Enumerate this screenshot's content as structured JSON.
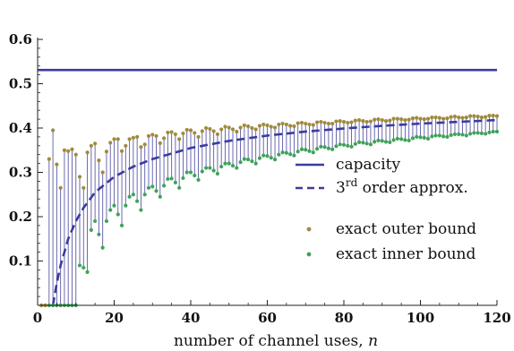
{
  "chart_data": {
    "type": "line",
    "title": "",
    "xlabel": "number of channel uses, ",
    "xlabel_var": "n",
    "ylabel": "",
    "xlim": [
      0,
      120
    ],
    "ylim": [
      0,
      0.6
    ],
    "x_ticks": [
      0,
      20,
      40,
      60,
      80,
      100,
      120
    ],
    "x_tick_labels": [
      "0",
      "20",
      "40",
      "60",
      "80",
      "100",
      "120"
    ],
    "y_ticks": [
      0.1,
      0.2,
      0.3,
      0.4,
      0.5,
      0.6
    ],
    "y_tick_labels": [
      "0.1",
      "0.2",
      "0.3",
      "0.4",
      "0.5",
      "0.6"
    ],
    "grid": false,
    "legend_position": "right",
    "series": [
      {
        "name": "capacity",
        "style": "solid",
        "color": "#3b3b9e",
        "x": [
          0,
          120
        ],
        "y": [
          0.531,
          0.531
        ]
      },
      {
        "name": "3rd order approx.",
        "name_base": "3",
        "name_sup": "rd",
        "name_rest": " order approx.",
        "style": "dashed",
        "color": "#3b3b9e",
        "x": [
          4,
          5,
          6,
          8,
          10,
          12,
          15,
          20,
          25,
          30,
          40,
          50,
          60,
          70,
          80,
          90,
          100,
          110,
          120
        ],
        "y": [
          0.0,
          0.05,
          0.09,
          0.15,
          0.19,
          0.22,
          0.255,
          0.29,
          0.313,
          0.33,
          0.355,
          0.371,
          0.383,
          0.392,
          0.399,
          0.405,
          0.41,
          0.414,
          0.418
        ]
      },
      {
        "name": "exact outer bound",
        "style": "points",
        "color": "#a08a3c",
        "x": [
          1,
          2,
          3,
          4,
          5,
          6,
          7,
          8,
          9,
          10,
          11,
          12,
          13,
          14,
          15,
          16,
          17,
          18,
          19,
          20,
          21,
          22,
          23,
          24,
          25,
          26,
          27,
          28,
          29,
          30,
          31,
          32,
          33,
          34,
          35,
          36,
          37,
          38,
          39,
          40,
          41,
          42,
          43,
          44,
          45,
          46,
          47,
          48,
          49,
          50,
          51,
          52,
          53,
          54,
          55,
          56,
          57,
          58,
          59,
          60,
          61,
          62,
          63,
          64,
          65,
          66,
          67,
          68,
          69,
          70,
          71,
          72,
          73,
          74,
          75,
          76,
          77,
          78,
          79,
          80,
          81,
          82,
          83,
          84,
          85,
          86,
          87,
          88,
          89,
          90,
          91,
          92,
          93,
          94,
          95,
          96,
          97,
          98,
          99,
          100,
          101,
          102,
          103,
          104,
          105,
          106,
          107,
          108,
          109,
          110,
          111,
          112,
          113,
          114,
          115,
          116,
          117,
          118,
          119,
          120
        ],
        "y": [
          0.0,
          0.0,
          0.33,
          0.395,
          0.318,
          0.265,
          0.35,
          0.348,
          0.352,
          0.34,
          0.29,
          0.265,
          0.345,
          0.36,
          0.365,
          0.327,
          0.3,
          0.347,
          0.367,
          0.375,
          0.375,
          0.348,
          0.36,
          0.375,
          0.378,
          0.38,
          0.357,
          0.363,
          0.382,
          0.385,
          0.382,
          0.366,
          0.377,
          0.39,
          0.391,
          0.386,
          0.375,
          0.388,
          0.396,
          0.395,
          0.389,
          0.38,
          0.393,
          0.4,
          0.398,
          0.393,
          0.386,
          0.397,
          0.403,
          0.401,
          0.397,
          0.392,
          0.401,
          0.406,
          0.404,
          0.4,
          0.397,
          0.405,
          0.408,
          0.406,
          0.403,
          0.401,
          0.408,
          0.41,
          0.408,
          0.405,
          0.404,
          0.411,
          0.412,
          0.41,
          0.408,
          0.407,
          0.413,
          0.414,
          0.412,
          0.41,
          0.41,
          0.415,
          0.416,
          0.414,
          0.412,
          0.413,
          0.417,
          0.418,
          0.416,
          0.414,
          0.415,
          0.419,
          0.42,
          0.418,
          0.416,
          0.417,
          0.421,
          0.421,
          0.42,
          0.418,
          0.419,
          0.422,
          0.423,
          0.421,
          0.42,
          0.421,
          0.424,
          0.424,
          0.423,
          0.421,
          0.422,
          0.425,
          0.426,
          0.424,
          0.423,
          0.424,
          0.427,
          0.427,
          0.426,
          0.424,
          0.425,
          0.428,
          0.428,
          0.427
        ]
      },
      {
        "name": "exact inner bound",
        "style": "points",
        "color": "#3fa35a",
        "x": [
          1,
          2,
          3,
          4,
          5,
          6,
          7,
          8,
          9,
          10,
          11,
          12,
          13,
          14,
          15,
          16,
          17,
          18,
          19,
          20,
          21,
          22,
          23,
          24,
          25,
          26,
          27,
          28,
          29,
          30,
          31,
          32,
          33,
          34,
          35,
          36,
          37,
          38,
          39,
          40,
          41,
          42,
          43,
          44,
          45,
          46,
          47,
          48,
          49,
          50,
          51,
          52,
          53,
          54,
          55,
          56,
          57,
          58,
          59,
          60,
          61,
          62,
          63,
          64,
          65,
          66,
          67,
          68,
          69,
          70,
          71,
          72,
          73,
          74,
          75,
          76,
          77,
          78,
          79,
          80,
          81,
          82,
          83,
          84,
          85,
          86,
          87,
          88,
          89,
          90,
          91,
          92,
          93,
          94,
          95,
          96,
          97,
          98,
          99,
          100,
          101,
          102,
          103,
          104,
          105,
          106,
          107,
          108,
          109,
          110,
          111,
          112,
          113,
          114,
          115,
          116,
          117,
          118,
          119,
          120
        ],
        "y": [
          0.0,
          0.0,
          0.0,
          0.0,
          0.0,
          0.0,
          0.0,
          0.0,
          0.0,
          0.0,
          0.09,
          0.085,
          0.075,
          0.17,
          0.19,
          0.16,
          0.13,
          0.19,
          0.215,
          0.225,
          0.205,
          0.18,
          0.225,
          0.245,
          0.25,
          0.235,
          0.215,
          0.25,
          0.265,
          0.268,
          0.258,
          0.245,
          0.27,
          0.285,
          0.286,
          0.277,
          0.265,
          0.287,
          0.3,
          0.3,
          0.293,
          0.283,
          0.302,
          0.31,
          0.31,
          0.304,
          0.297,
          0.313,
          0.32,
          0.32,
          0.315,
          0.31,
          0.323,
          0.33,
          0.329,
          0.325,
          0.32,
          0.332,
          0.338,
          0.337,
          0.333,
          0.329,
          0.34,
          0.345,
          0.344,
          0.341,
          0.338,
          0.347,
          0.352,
          0.351,
          0.348,
          0.345,
          0.353,
          0.358,
          0.357,
          0.354,
          0.352,
          0.359,
          0.363,
          0.362,
          0.36,
          0.358,
          0.364,
          0.368,
          0.367,
          0.365,
          0.363,
          0.369,
          0.372,
          0.371,
          0.369,
          0.368,
          0.373,
          0.376,
          0.375,
          0.373,
          0.372,
          0.377,
          0.38,
          0.379,
          0.378,
          0.376,
          0.381,
          0.383,
          0.383,
          0.381,
          0.38,
          0.384,
          0.386,
          0.386,
          0.385,
          0.383,
          0.387,
          0.389,
          0.389,
          0.388,
          0.387,
          0.39,
          0.392,
          0.392
        ]
      }
    ],
    "stems": true
  }
}
